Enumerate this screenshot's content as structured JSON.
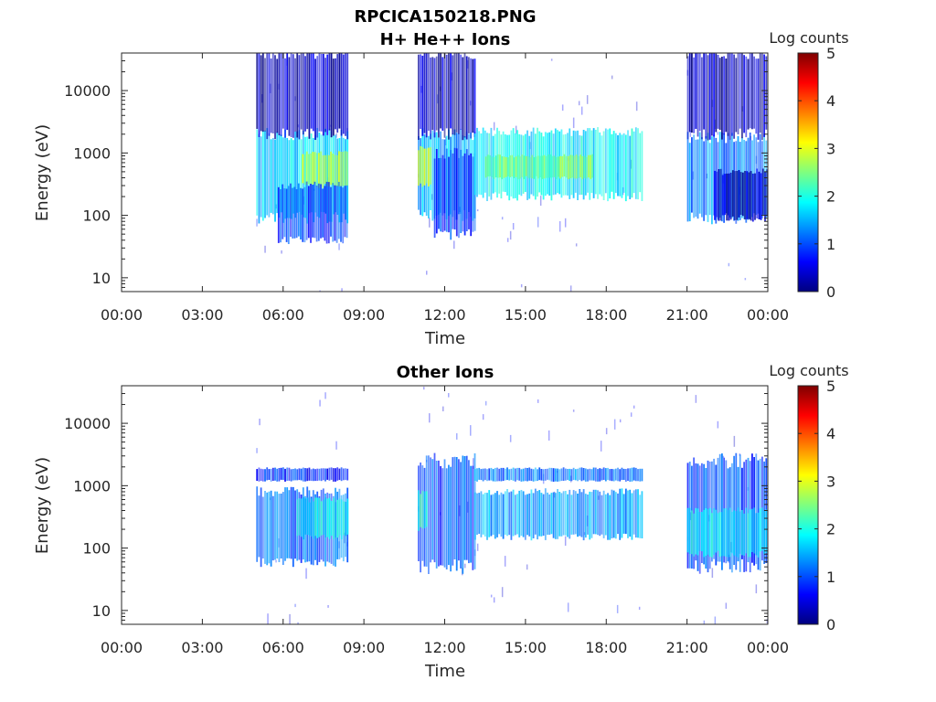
{
  "figure": {
    "title": "RPCICA150218.PNG"
  },
  "colormap": {
    "name": "jet",
    "stops": [
      "#00007f",
      "#0000ff",
      "#007fff",
      "#00ffff",
      "#7fff7f",
      "#ffff00",
      "#ff7f00",
      "#ff0000",
      "#7f0000"
    ]
  },
  "chart_data": [
    {
      "type": "heatmap",
      "title": "H+ He++ Ions",
      "xlabel": "Time",
      "ylabel": "Energy (eV)",
      "x_ticks": [
        "00:00",
        "03:00",
        "06:00",
        "09:00",
        "12:00",
        "15:00",
        "18:00",
        "21:00",
        "00:00"
      ],
      "xlim_hours": [
        0,
        24
      ],
      "y_scale": "log",
      "ylim": [
        6,
        40000
      ],
      "y_ticks": [
        10,
        100,
        1000,
        10000
      ],
      "y_tick_labels": [
        "10",
        "100",
        "1000",
        "10000"
      ],
      "colorbar": {
        "label": "Log counts",
        "range": [
          0,
          5
        ],
        "ticks": [
          "0",
          "1",
          "2",
          "3",
          "4",
          "5"
        ]
      },
      "data_intervals_hours": [
        [
          5.0,
          8.4
        ],
        [
          11.0,
          13.1
        ],
        [
          13.1,
          19.3
        ],
        [
          21.0,
          24.0
        ]
      ],
      "features": [
        {
          "t_start": 5.0,
          "t_end": 8.4,
          "e_min": 90,
          "e_max": 2000,
          "log_counts": 1.7
        },
        {
          "t_start": 6.7,
          "t_end": 8.4,
          "e_min": 300,
          "e_max": 1000,
          "log_counts": 2.7
        },
        {
          "t_start": 5.8,
          "t_end": 8.4,
          "e_min": 40,
          "e_max": 300,
          "log_counts": 0.9
        },
        {
          "t_start": 5.0,
          "t_end": 8.4,
          "e_min": 2000,
          "e_max": 40000,
          "log_counts": 0.3
        },
        {
          "t_start": 11.0,
          "t_end": 13.1,
          "e_min": 100,
          "e_max": 2000,
          "log_counts": 1.5
        },
        {
          "t_start": 11.0,
          "t_end": 11.5,
          "e_min": 300,
          "e_max": 1200,
          "log_counts": 2.8
        },
        {
          "t_start": 11.6,
          "t_end": 13.1,
          "e_min": 50,
          "e_max": 1000,
          "log_counts": 0.9
        },
        {
          "t_start": 11.0,
          "t_end": 13.1,
          "e_min": 2000,
          "e_max": 40000,
          "log_counts": 0.3
        },
        {
          "t_start": 13.1,
          "t_end": 19.3,
          "e_min": 200,
          "e_max": 2200,
          "log_counts": 1.8
        },
        {
          "t_start": 13.5,
          "t_end": 17.5,
          "e_min": 400,
          "e_max": 900,
          "log_counts": 2.5
        },
        {
          "t_start": 21.0,
          "t_end": 24.0,
          "e_min": 90,
          "e_max": 1800,
          "log_counts": 1.3
        },
        {
          "t_start": 22.0,
          "t_end": 24.0,
          "e_min": 90,
          "e_max": 500,
          "log_counts": 0.3
        },
        {
          "t_start": 21.0,
          "t_end": 24.0,
          "e_min": 2000,
          "e_max": 40000,
          "log_counts": 0.3
        }
      ]
    },
    {
      "type": "heatmap",
      "title": "Other Ions",
      "xlabel": "Time",
      "ylabel": "Energy (eV)",
      "x_ticks": [
        "00:00",
        "03:00",
        "06:00",
        "09:00",
        "12:00",
        "15:00",
        "18:00",
        "21:00",
        "00:00"
      ],
      "xlim_hours": [
        0,
        24
      ],
      "y_scale": "log",
      "ylim": [
        6,
        40000
      ],
      "y_ticks": [
        10,
        100,
        1000,
        10000
      ],
      "y_tick_labels": [
        "10",
        "100",
        "1000",
        "10000"
      ],
      "colorbar": {
        "label": "Log counts",
        "range": [
          0,
          5
        ],
        "ticks": [
          "0",
          "1",
          "2",
          "3",
          "4",
          "5"
        ]
      },
      "data_intervals_hours": [
        [
          5.0,
          8.4
        ],
        [
          11.0,
          13.1
        ],
        [
          13.1,
          19.3
        ],
        [
          21.0,
          24.0
        ]
      ],
      "features": [
        {
          "t_start": 5.0,
          "t_end": 8.4,
          "e_min": 1200,
          "e_max": 1900,
          "log_counts": 0.8
        },
        {
          "t_start": 5.0,
          "t_end": 8.4,
          "e_min": 60,
          "e_max": 800,
          "log_counts": 1.1
        },
        {
          "t_start": 6.5,
          "t_end": 8.4,
          "e_min": 150,
          "e_max": 600,
          "log_counts": 1.8
        },
        {
          "t_start": 11.0,
          "t_end": 13.1,
          "e_min": 50,
          "e_max": 2500,
          "log_counts": 1.0
        },
        {
          "t_start": 11.0,
          "t_end": 11.3,
          "e_min": 200,
          "e_max": 800,
          "log_counts": 2.0
        },
        {
          "t_start": 13.1,
          "t_end": 19.3,
          "e_min": 1200,
          "e_max": 1900,
          "log_counts": 1.2
        },
        {
          "t_start": 13.1,
          "t_end": 19.3,
          "e_min": 150,
          "e_max": 800,
          "log_counts": 1.4
        },
        {
          "t_start": 21.0,
          "t_end": 24.0,
          "e_min": 50,
          "e_max": 2500,
          "log_counts": 1.0
        },
        {
          "t_start": 21.0,
          "t_end": 24.0,
          "e_min": 80,
          "e_max": 400,
          "log_counts": 1.8
        }
      ]
    }
  ]
}
